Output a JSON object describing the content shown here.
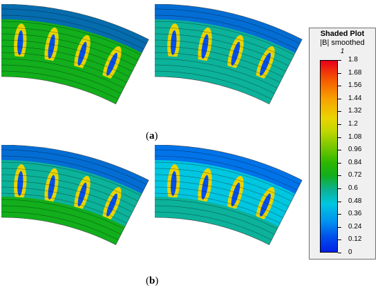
{
  "captions": {
    "a": "a",
    "b": "b"
  },
  "legend": {
    "title": "Shaded Plot",
    "subtitle": "|B| smoothed",
    "unit": "1",
    "ticks": [
      "1.8",
      "1.68",
      "1.56",
      "1.44",
      "1.32",
      "1.2",
      "1.08",
      "0.96",
      "0.84",
      "0.72",
      "0.6",
      "0.48",
      "0.36",
      "0.24",
      "0.12",
      "0"
    ],
    "min": 0,
    "max": 1.8
  },
  "panels": [
    {
      "id": "a-left",
      "row": "a",
      "column": "left",
      "field_level": 0.9,
      "rotor": "full"
    },
    {
      "id": "a-right",
      "row": "a",
      "column": "right",
      "field_level": 0.75,
      "rotor": "stepped"
    },
    {
      "id": "b-left",
      "row": "b",
      "column": "left",
      "field_level": 0.8,
      "rotor": "full"
    },
    {
      "id": "b-right",
      "row": "b",
      "column": "right",
      "field_level": 0.6,
      "rotor": "stepped"
    }
  ],
  "colors": {
    "high": "#e8001a",
    "mid": "#2fb800",
    "low": "#0020e6",
    "contour": "#000000"
  }
}
